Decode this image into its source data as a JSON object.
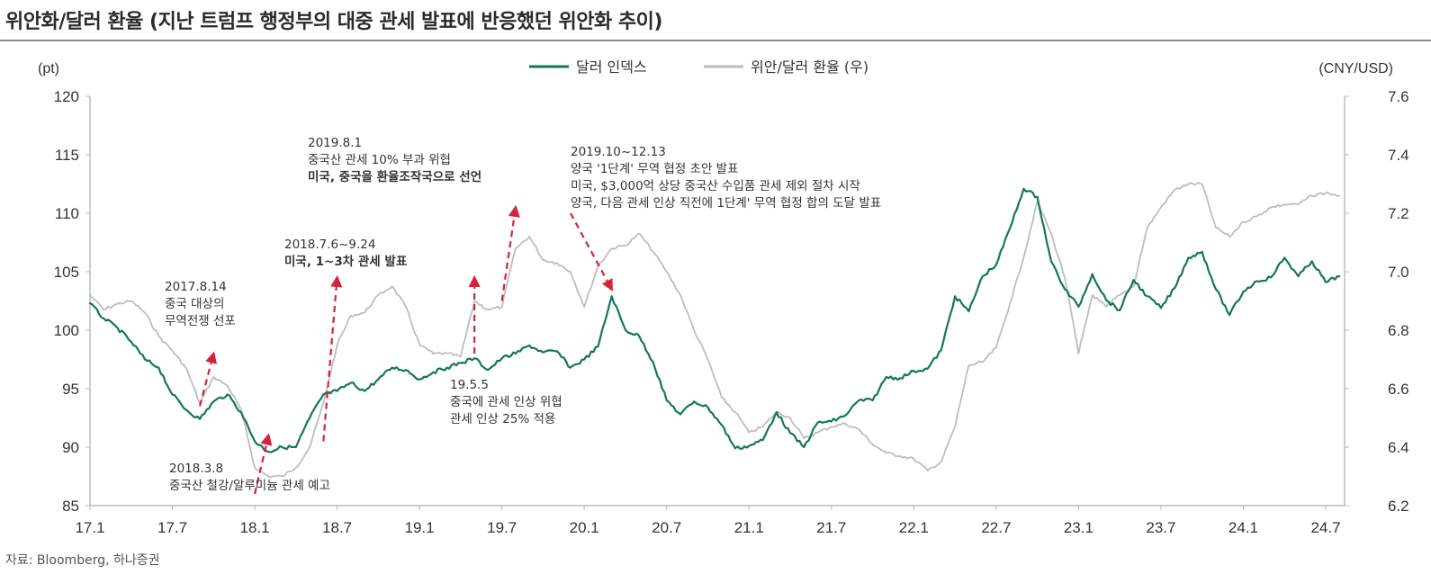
{
  "title": "위안화/달러 환율 (지난 트럼프 행정부의 대중 관세 발표에 반응했던 위안화 추이)",
  "source": "자료: Bloomberg, 하나증권",
  "colors": {
    "dollar_index": "#13775a",
    "cny_usd": "#bdbdbd",
    "arrow": "#d6223a",
    "axis": "#bbbbbb"
  },
  "chart_data": {
    "type": "line",
    "title": "위안화/달러 환율 (지난 트럼프 행정부의 대중 관세 발표에 반응했던 위안화 추이)",
    "left_axis_unit": "(pt)",
    "right_axis_unit": "(CNY/USD)",
    "left_ylim": [
      85,
      120
    ],
    "left_yticks": [
      "85",
      "90",
      "95",
      "100",
      "105",
      "110",
      "115",
      "120"
    ],
    "right_ylim": [
      6.2,
      7.6
    ],
    "right_yticks": [
      "6.2",
      "6.4",
      "6.6",
      "6.8",
      "7.0",
      "7.2",
      "7.4",
      "7.6"
    ],
    "x_ticks": [
      "17.1",
      "17.7",
      "18.1",
      "18.7",
      "19.1",
      "19.7",
      "20.1",
      "20.7",
      "21.1",
      "21.7",
      "22.1",
      "22.7",
      "23.1",
      "23.7",
      "24.1",
      "24.7"
    ],
    "legend_position": "top-center",
    "series": [
      {
        "name": "달러 인덱스",
        "axis": "left",
        "color": "#13775a",
        "points": [
          [
            "17.1",
            102.3
          ],
          [
            "17.2",
            101.0
          ],
          [
            "17.3",
            100.2
          ],
          [
            "17.4",
            99.0
          ],
          [
            "17.5",
            97.5
          ],
          [
            "17.6",
            96.8
          ],
          [
            "17.7",
            94.5
          ],
          [
            "17.8",
            93.2
          ],
          [
            "17.9",
            92.4
          ],
          [
            "17.10",
            93.9
          ],
          [
            "17.11",
            94.5
          ],
          [
            "17.12",
            93.0
          ],
          [
            "18.1",
            90.5
          ],
          [
            "18.2",
            89.6
          ],
          [
            "18.3",
            90.0
          ],
          [
            "18.4",
            90.0
          ],
          [
            "18.5",
            92.5
          ],
          [
            "18.6",
            94.5
          ],
          [
            "18.7",
            94.8
          ],
          [
            "18.8",
            95.5
          ],
          [
            "18.9",
            94.8
          ],
          [
            "18.10",
            95.8
          ],
          [
            "18.11",
            96.8
          ],
          [
            "18.12",
            96.6
          ],
          [
            "19.1",
            95.8
          ],
          [
            "19.2",
            96.4
          ],
          [
            "19.3",
            96.8
          ],
          [
            "19.4",
            97.2
          ],
          [
            "19.5",
            97.6
          ],
          [
            "19.6",
            96.6
          ],
          [
            "19.7",
            97.6
          ],
          [
            "19.8",
            98.0
          ],
          [
            "19.9",
            98.7
          ],
          [
            "19.10",
            98.1
          ],
          [
            "19.11",
            98.2
          ],
          [
            "19.12",
            96.8
          ],
          [
            "20.1",
            97.5
          ],
          [
            "20.2",
            98.6
          ],
          [
            "20.3",
            102.9
          ],
          [
            "20.4",
            100.0
          ],
          [
            "20.5",
            99.5
          ],
          [
            "20.6",
            97.3
          ],
          [
            "20.7",
            94.0
          ],
          [
            "20.8",
            92.8
          ],
          [
            "20.9",
            93.9
          ],
          [
            "20.10",
            93.4
          ],
          [
            "20.11",
            91.9
          ],
          [
            "20.12",
            89.9
          ],
          [
            "21.1",
            90.1
          ],
          [
            "21.2",
            90.6
          ],
          [
            "21.3",
            93.0
          ],
          [
            "21.4",
            91.2
          ],
          [
            "21.5",
            90.0
          ],
          [
            "21.6",
            92.1
          ],
          [
            "21.7",
            92.2
          ],
          [
            "21.8",
            92.7
          ],
          [
            "21.9",
            94.0
          ],
          [
            "21.10",
            94.0
          ],
          [
            "21.11",
            96.0
          ],
          [
            "21.12",
            95.9
          ],
          [
            "22.1",
            96.5
          ],
          [
            "22.2",
            96.7
          ],
          [
            "22.3",
            98.3
          ],
          [
            "22.4",
            102.9
          ],
          [
            "22.5",
            101.6
          ],
          [
            "22.6",
            104.6
          ],
          [
            "22.7",
            105.6
          ],
          [
            "22.8",
            108.7
          ],
          [
            "22.9",
            112.1
          ],
          [
            "22.10",
            111.4
          ],
          [
            "22.11",
            105.9
          ],
          [
            "22.12",
            103.5
          ],
          [
            "23.1",
            102.0
          ],
          [
            "23.2",
            104.8
          ],
          [
            "23.3",
            102.6
          ],
          [
            "23.4",
            101.7
          ],
          [
            "23.5",
            104.3
          ],
          [
            "23.6",
            102.9
          ],
          [
            "23.7",
            101.9
          ],
          [
            "23.8",
            103.6
          ],
          [
            "23.9",
            106.2
          ],
          [
            "23.10",
            106.7
          ],
          [
            "23.11",
            103.5
          ],
          [
            "23.12",
            101.3
          ],
          [
            "24.1",
            103.3
          ],
          [
            "24.2",
            104.2
          ],
          [
            "24.3",
            104.5
          ],
          [
            "24.4",
            106.2
          ],
          [
            "24.5",
            104.6
          ],
          [
            "24.6",
            105.9
          ],
          [
            "24.7",
            104.1
          ],
          [
            "24.8",
            104.6
          ]
        ]
      },
      {
        "name": "위안/달러 환율 (우)",
        "axis": "right",
        "color": "#bdbdbd",
        "points": [
          [
            "17.1",
            6.92
          ],
          [
            "17.2",
            6.87
          ],
          [
            "17.3",
            6.89
          ],
          [
            "17.4",
            6.9
          ],
          [
            "17.5",
            6.86
          ],
          [
            "17.6",
            6.78
          ],
          [
            "17.7",
            6.73
          ],
          [
            "17.8",
            6.67
          ],
          [
            "17.9",
            6.55
          ],
          [
            "17.10",
            6.64
          ],
          [
            "17.11",
            6.61
          ],
          [
            "17.12",
            6.53
          ],
          [
            "18.1",
            6.33
          ],
          [
            "18.2",
            6.3
          ],
          [
            "18.3",
            6.3
          ],
          [
            "18.4",
            6.33
          ],
          [
            "18.5",
            6.4
          ],
          [
            "18.6",
            6.55
          ],
          [
            "18.7",
            6.75
          ],
          [
            "18.8",
            6.85
          ],
          [
            "18.9",
            6.86
          ],
          [
            "18.10",
            6.92
          ],
          [
            "18.11",
            6.95
          ],
          [
            "18.12",
            6.88
          ],
          [
            "19.1",
            6.75
          ],
          [
            "19.2",
            6.72
          ],
          [
            "19.3",
            6.72
          ],
          [
            "19.4",
            6.71
          ],
          [
            "19.5",
            6.9
          ],
          [
            "19.6",
            6.87
          ],
          [
            "19.7",
            6.88
          ],
          [
            "19.8",
            7.08
          ],
          [
            "19.9",
            7.12
          ],
          [
            "19.10",
            7.04
          ],
          [
            "19.11",
            7.03
          ],
          [
            "19.12",
            7.0
          ],
          [
            "20.1",
            6.88
          ],
          [
            "20.2",
            7.02
          ],
          [
            "20.3",
            7.08
          ],
          [
            "20.4",
            7.09
          ],
          [
            "20.5",
            7.13
          ],
          [
            "20.6",
            7.07
          ],
          [
            "20.7",
            7.0
          ],
          [
            "20.8",
            6.92
          ],
          [
            "20.9",
            6.8
          ],
          [
            "20.10",
            6.7
          ],
          [
            "20.11",
            6.57
          ],
          [
            "20.12",
            6.52
          ],
          [
            "21.1",
            6.45
          ],
          [
            "21.2",
            6.47
          ],
          [
            "21.3",
            6.52
          ],
          [
            "21.4",
            6.5
          ],
          [
            "21.5",
            6.43
          ],
          [
            "21.6",
            6.45
          ],
          [
            "21.7",
            6.47
          ],
          [
            "21.8",
            6.48
          ],
          [
            "21.9",
            6.46
          ],
          [
            "21.10",
            6.41
          ],
          [
            "21.11",
            6.38
          ],
          [
            "21.12",
            6.37
          ],
          [
            "22.1",
            6.36
          ],
          [
            "22.2",
            6.32
          ],
          [
            "22.3",
            6.35
          ],
          [
            "22.4",
            6.47
          ],
          [
            "22.5",
            6.68
          ],
          [
            "22.6",
            6.69
          ],
          [
            "22.7",
            6.74
          ],
          [
            "22.8",
            6.89
          ],
          [
            "22.9",
            7.05
          ],
          [
            "22.10",
            7.24
          ],
          [
            "22.11",
            7.13
          ],
          [
            "22.12",
            6.98
          ],
          [
            "23.1",
            6.72
          ],
          [
            "23.2",
            6.92
          ],
          [
            "23.3",
            6.88
          ],
          [
            "23.4",
            6.92
          ],
          [
            "23.5",
            6.95
          ],
          [
            "23.6",
            7.15
          ],
          [
            "23.7",
            7.22
          ],
          [
            "23.8",
            7.28
          ],
          [
            "23.9",
            7.3
          ],
          [
            "23.10",
            7.3
          ],
          [
            "23.11",
            7.15
          ],
          [
            "23.12",
            7.12
          ],
          [
            "24.1",
            7.17
          ],
          [
            "24.2",
            7.19
          ],
          [
            "24.3",
            7.22
          ],
          [
            "24.4",
            7.23
          ],
          [
            "24.5",
            7.23
          ],
          [
            "24.6",
            7.26
          ],
          [
            "24.7",
            7.27
          ],
          [
            "24.8",
            7.26
          ]
        ]
      }
    ],
    "annotations": [
      {
        "lines": [
          "2017.8.14",
          "중국 대상의",
          "무역전쟁 선포"
        ],
        "bold_lines": [],
        "arrow_from": [
          "17.9",
          93.5
        ],
        "arrow_to": [
          "17.10",
          98.0
        ]
      },
      {
        "lines": [
          "2018.3.8",
          "중국산 철강/알루미늄 관세 예고"
        ],
        "bold_lines": [],
        "arrow_from": [
          "18.1",
          86.0
        ],
        "arrow_to": [
          "18.2",
          91.0
        ]
      },
      {
        "lines": [
          "2018.7.6~9.24",
          "미국, 1~3차 관세 발표"
        ],
        "bold_lines": [
          1
        ],
        "arrow_from": [
          "18.6",
          90.5
        ],
        "arrow_to": [
          "18.7",
          104.5
        ]
      },
      {
        "lines": [
          "2019.8.1",
          "중국산 관세 10% 부과 위협",
          "미국, 중국을 환율조작국으로 선언"
        ],
        "bold_lines": [
          2
        ],
        "arrow_from": [
          "19.7",
          102.5
        ],
        "arrow_to": [
          "19.8",
          110.5
        ]
      },
      {
        "lines": [
          "19.5.5",
          "중국에 관세 인상 위협",
          "관세 인상 25% 적용"
        ],
        "bold_lines": [],
        "arrow_from": [
          "19.5",
          98.0
        ],
        "arrow_to": [
          "19.5",
          104.5
        ]
      },
      {
        "lines": [
          "2019.10~12.13",
          "양국 '1단계' 무역 협정 초안 발표",
          "미국, $3,000억 상당 중국산 수입품 관세 제외 절차 시작",
          "양국, 다음 관세 인상 직전에 1단계' 무역 협정 합의 도달 발표"
        ],
        "bold_lines": [],
        "arrow_from": [
          "19.12",
          110.0
        ],
        "arrow_to": [
          "20.3",
          103.5
        ]
      }
    ]
  }
}
